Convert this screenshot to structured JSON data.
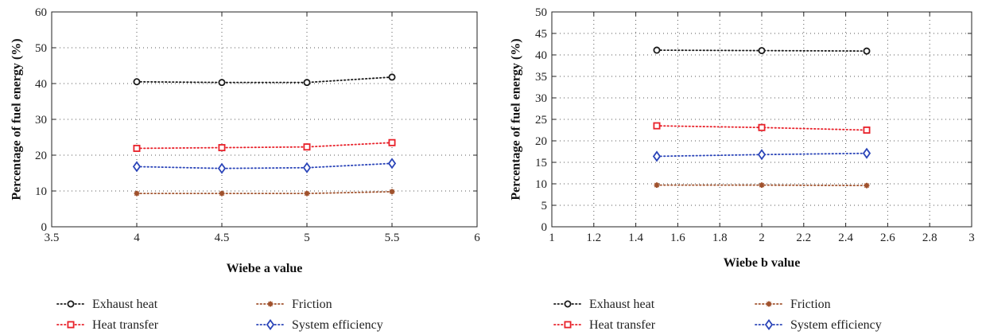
{
  "chart_data": [
    {
      "type": "line",
      "xlabel": "Wiebe a value",
      "ylabel": "Percentage of fuel energy (%)",
      "xlim": [
        3.5,
        6
      ],
      "ylim": [
        0,
        60
      ],
      "xticks": [
        3.5,
        4,
        4.5,
        5,
        5.5,
        6
      ],
      "yticks": [
        0,
        10,
        20,
        30,
        40,
        50,
        60
      ],
      "xtick_labels": [
        "3.5",
        "4",
        "4.5",
        "5",
        "5.5",
        "6"
      ],
      "ytick_labels": [
        "0",
        "10",
        "20",
        "30",
        "40",
        "50",
        "60"
      ],
      "grid": true,
      "legend_position": "bottom",
      "x": [
        4,
        4.5,
        5,
        5.5
      ],
      "series": [
        {
          "name": "Exhaust heat",
          "values": [
            40.5,
            40.3,
            40.3,
            41.8
          ],
          "color": "#1a1a1a",
          "marker": "circle"
        },
        {
          "name": "Friction",
          "values": [
            9.3,
            9.3,
            9.3,
            9.8
          ],
          "color": "#a0522d",
          "marker": "star"
        },
        {
          "name": "Heat transfer",
          "values": [
            21.9,
            22.1,
            22.3,
            23.5
          ],
          "color": "#e8212a",
          "marker": "square"
        },
        {
          "name": "System efficiency",
          "values": [
            16.8,
            16.3,
            16.5,
            17.7
          ],
          "color": "#2a44b8",
          "marker": "diamond"
        }
      ]
    },
    {
      "type": "line",
      "xlabel": "Wiebe b value",
      "ylabel": "Percentage of fuel energy (%)",
      "xlim": [
        1,
        3
      ],
      "ylim": [
        0,
        50
      ],
      "xticks": [
        1,
        1.2,
        1.4,
        1.6,
        1.8,
        2,
        2.2,
        2.4,
        2.6,
        2.8,
        3
      ],
      "yticks": [
        0,
        5,
        10,
        15,
        20,
        25,
        30,
        35,
        40,
        45,
        50
      ],
      "xtick_labels": [
        "1",
        "1.2",
        "1.4",
        "1.6",
        "1.8",
        "2",
        "2.2",
        "2.4",
        "2.6",
        "2.8",
        "3"
      ],
      "ytick_labels": [
        "0",
        "5",
        "10",
        "15",
        "20",
        "25",
        "30",
        "35",
        "40",
        "45",
        "50"
      ],
      "grid": true,
      "legend_position": "bottom",
      "x": [
        1.5,
        2,
        2.5
      ],
      "series": [
        {
          "name": "Exhaust heat",
          "values": [
            41.1,
            41.0,
            40.9
          ],
          "color": "#1a1a1a",
          "marker": "circle"
        },
        {
          "name": "Friction",
          "values": [
            9.7,
            9.7,
            9.6
          ],
          "color": "#a0522d",
          "marker": "star"
        },
        {
          "name": "Heat transfer",
          "values": [
            23.5,
            23.1,
            22.5
          ],
          "color": "#e8212a",
          "marker": "square"
        },
        {
          "name": "System efficiency",
          "values": [
            16.4,
            16.8,
            17.1
          ],
          "color": "#2a44b8",
          "marker": "diamond"
        }
      ]
    }
  ]
}
